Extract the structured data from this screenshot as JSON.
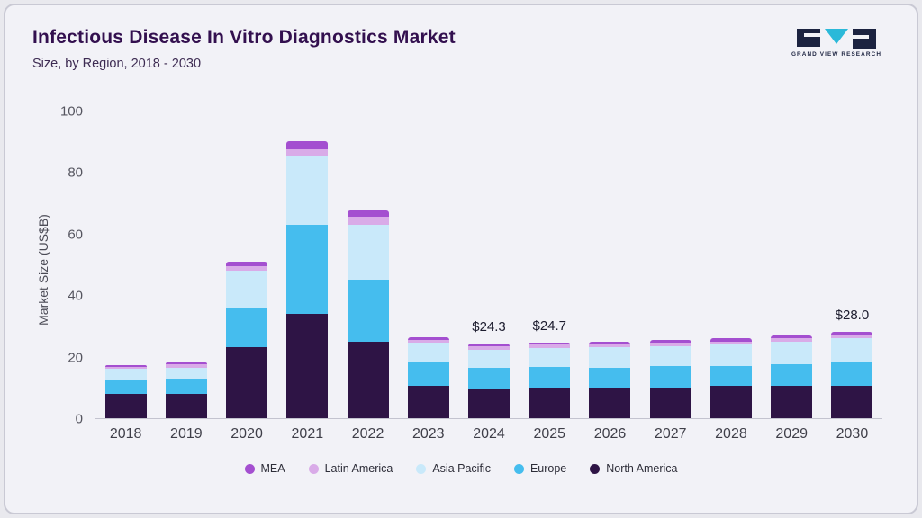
{
  "header": {
    "title": "Infectious Disease In Vitro Diagnostics Market",
    "subtitle": "Size, by Region, 2018 - 2030",
    "logo_text": "GRAND VIEW RESEARCH",
    "logo_colors": {
      "dark": "#1c2340",
      "teal": "#2bb9d9"
    }
  },
  "chart_data": {
    "type": "bar",
    "stacked": true,
    "title": "Infectious Disease In Vitro Diagnostics Market Size, by Region, 2018 - 2030",
    "ylabel": "Market Size (US$B)",
    "xlabel": "",
    "ylim": [
      0,
      100
    ],
    "yticks": [
      0,
      20,
      40,
      60,
      80,
      100
    ],
    "grid": false,
    "legend_position": "bottom",
    "categories": [
      "2018",
      "2019",
      "2020",
      "2021",
      "2022",
      "2023",
      "2024",
      "2025",
      "2026",
      "2027",
      "2028",
      "2029",
      "2030"
    ],
    "series": [
      {
        "name": "North America",
        "color": "#2e1445",
        "values": [
          8,
          8,
          23,
          34,
          25,
          10.5,
          9.5,
          10,
          10,
          10,
          10.5,
          10.5,
          10.5
        ]
      },
      {
        "name": "Europe",
        "color": "#45bdee",
        "values": [
          4.5,
          5,
          13,
          29,
          20,
          8,
          7,
          6.7,
          6.5,
          7,
          6.5,
          7,
          7.5
        ]
      },
      {
        "name": "Asia Pacific",
        "color": "#c9e9fa",
        "values": [
          3.5,
          3.5,
          12,
          22,
          18,
          6,
          5.8,
          6,
          6.5,
          6.5,
          7,
          7.5,
          8
        ]
      },
      {
        "name": "Latin America",
        "color": "#d9abe8",
        "values": [
          0.8,
          1,
          1.5,
          2.5,
          2.5,
          1,
          1.2,
          1.2,
          1,
          1,
          1,
          1,
          1.2
        ]
      },
      {
        "name": "MEA",
        "color": "#a44fd0",
        "values": [
          0.5,
          0.6,
          1.5,
          2.5,
          2,
          0.8,
          0.8,
          0.8,
          1,
          1,
          1,
          1,
          0.8
        ]
      }
    ],
    "totals": [
      17.3,
      18.1,
      51,
      90,
      67.5,
      26.3,
      24.3,
      24.7,
      25,
      25.5,
      26,
      27,
      28
    ],
    "annotations": {
      "2024": "$24.3",
      "2025": "$24.7",
      "2030": "$28.0"
    },
    "legend_order": [
      "MEA",
      "Latin America",
      "Asia Pacific",
      "Europe",
      "North America"
    ]
  }
}
